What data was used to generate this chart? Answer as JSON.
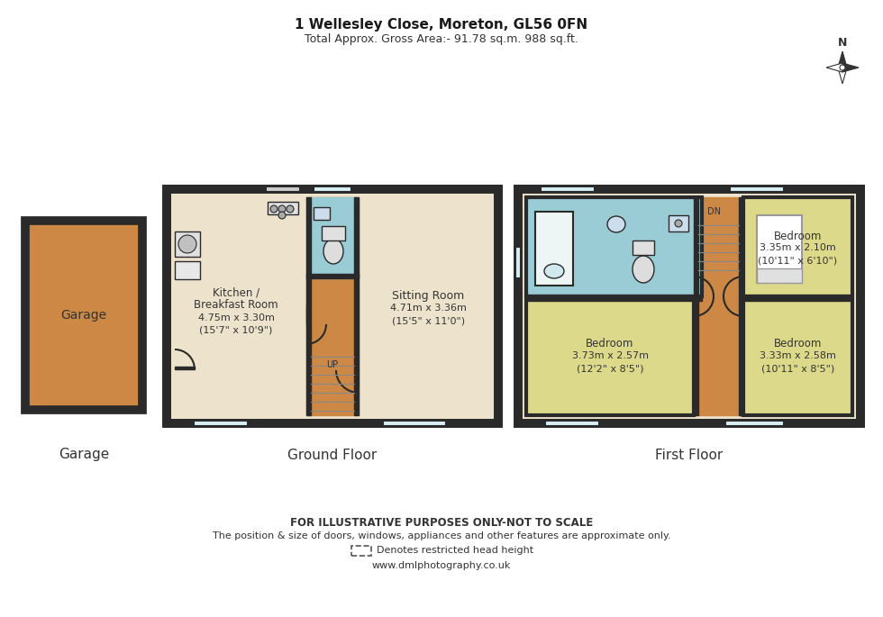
{
  "title1": "1 Wellesley Close, Moreton, GL56 0FN",
  "title2": "Total Approx. Gross Area:- 91.78 sq.m. 988 sq.ft.",
  "footer1": "FOR ILLUSTRATIVE PURPOSES ONLY-NOT TO SCALE",
  "footer2": "The position & size of doors, windows, appliances and other features are approximate only.",
  "footer3": "Denotes restricted head height",
  "footer4": "www.dmlphotography.co.uk",
  "label_garage": "Garage",
  "label_ground": "Ground Floor",
  "label_first": "First Floor",
  "bg_color": "#ffffff",
  "wall_color": "#2a2a2a",
  "floor_beige": "#ede3cc",
  "floor_orange": "#cc8844",
  "floor_blue": "#99ccd4",
  "floor_yellow": "#ddd98a",
  "floor_white": "#f8f8f8"
}
